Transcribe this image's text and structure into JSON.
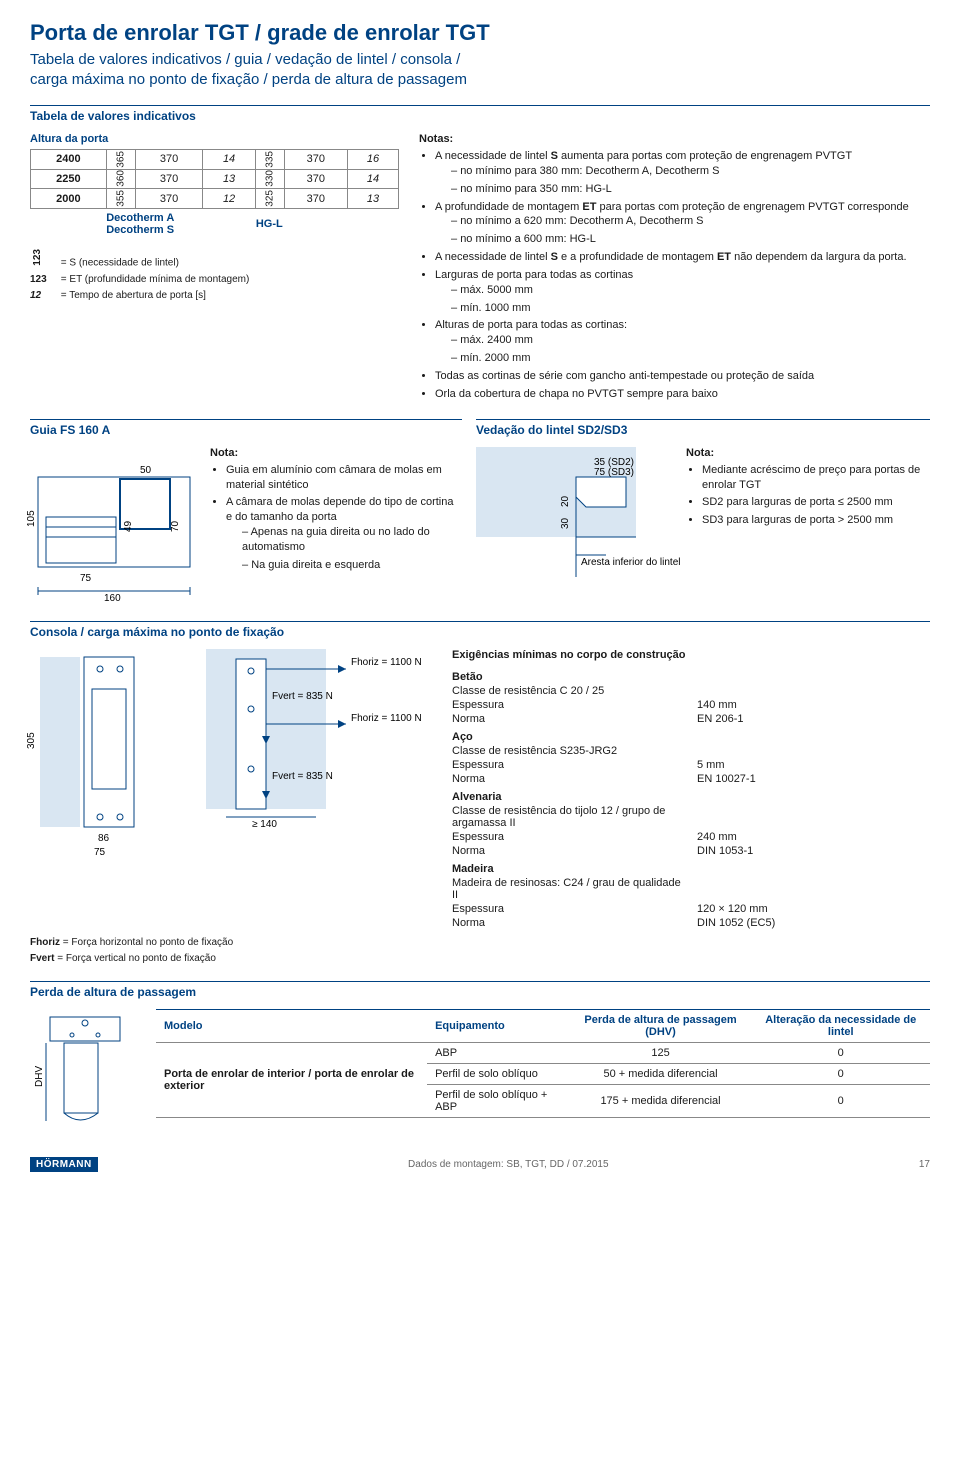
{
  "colors": {
    "brand": "#004282",
    "line": "#888888",
    "fill": "#d9e6f2",
    "text": "#1a1a1a"
  },
  "title": {
    "main": "Porta de enrolar TGT / grade de enrolar TGT",
    "sub": "Tabela de valores indicativos / guia / vedação de lintel / consola /\ncarga máxima no ponto de fixação / perda de altura de passagem"
  },
  "tabela_indicativos": {
    "heading": "Tabela de valores indicativos",
    "altura_label": "Altura da porta",
    "rows": [
      {
        "h": "2400",
        "c1": "365",
        "c2": "370",
        "c3": "14",
        "c4": "335",
        "c5": "370",
        "c6": "16"
      },
      {
        "h": "2250",
        "c1": "360",
        "c2": "370",
        "c3": "13",
        "c4": "330",
        "c5": "370",
        "c6": "14"
      },
      {
        "h": "2000",
        "c1": "355",
        "c2": "370",
        "c3": "12",
        "c4": "325",
        "c5": "370",
        "c6": "13"
      }
    ],
    "footer": {
      "left": "Decotherm A\nDecotherm S",
      "right": "HG-L"
    },
    "legend": [
      {
        "key": "123",
        "style": "rotated-bold",
        "txt": "= S (necessidade de lintel)"
      },
      {
        "key": "123",
        "style": "bold",
        "txt": "= ET (profundidade mínima de montagem)"
      },
      {
        "key": "12",
        "style": "italic-bold",
        "txt": "= Tempo de abertura de porta [s]"
      }
    ]
  },
  "notas_top": {
    "title": "Notas:",
    "items": [
      {
        "txt": "A necessidade de lintel <b>S</b> aumenta para portas com proteção de engrenagem PVTGT",
        "sub": [
          "no mínimo para 380 mm: Decotherm A, Decotherm S",
          "no mínimo para 350 mm: HG-L"
        ]
      },
      {
        "txt": "A profundidade de montagem <b>ET</b> para portas com proteção de engrenagem PVTGT corresponde",
        "sub": [
          "no mínimo a 620 mm: Decotherm A, Decotherm S",
          "no mínimo a 600 mm: HG-L"
        ]
      },
      {
        "txt": "A necessidade de lintel <b>S</b> e a profundidade de montagem <b>ET</b> não dependem da largura da porta."
      },
      {
        "txt": "Larguras de porta para todas as cortinas",
        "sub": [
          "máx. 5000 mm",
          "mín. 1000 mm"
        ]
      },
      {
        "txt": "Alturas de porta para todas as cortinas:",
        "sub": [
          "máx. 2400 mm",
          "mín. 2000 mm"
        ]
      },
      {
        "txt": "Todas as cortinas de série com gancho anti-tempestade ou proteção de saída"
      },
      {
        "txt": "Orla da cobertura de chapa no PVTGT sempre para baixo"
      }
    ]
  },
  "guia": {
    "heading": "Guia FS 160 A",
    "dims": {
      "w160": "160",
      "w75": "75",
      "w50": "50",
      "h105": "105",
      "h70": "70",
      "h49": "49"
    },
    "nota_title": "Nota:",
    "nota": [
      {
        "txt": "Guia em alumínio com câmara de molas em material sintético"
      },
      {
        "txt": "A câmara de molas depende do tipo de cortina e do tamanho da porta",
        "sub": [
          "Apenas na guia direita ou no lado do automatismo",
          "Na guia direita e esquerda"
        ]
      }
    ]
  },
  "vedacao": {
    "heading": "Vedação do lintel SD2/SD3",
    "dims": {
      "d35": "35 (SD2)",
      "d75": "75 (SD3)",
      "d20": "20",
      "d30": "30"
    },
    "aresta": "Aresta inferior do lintel",
    "nota_title": "Nota:",
    "nota": [
      {
        "txt": "Mediante acréscimo de preço para portas de enrolar TGT"
      },
      {
        "txt": "SD2 para larguras de porta ≤ 2500 mm"
      },
      {
        "txt": "SD3 para larguras de porta > 2500 mm"
      }
    ]
  },
  "consola": {
    "heading": "Consola / carga máxima no ponto de fixação",
    "dims": {
      "h305": "305",
      "w86": "86",
      "w75": "75",
      "ge140": "≥ 140"
    },
    "forces": {
      "fh": "Fhoriz = 1100 N",
      "fv": "Fvert = 835 N"
    },
    "legend": [
      {
        "k": "Fhoriz",
        "v": "= Força horizontal no ponto de fixação"
      },
      {
        "k": "Fvert",
        "v": "= Força vertical no ponto de fixação"
      }
    ],
    "exig_title": "Exigências mínimas no corpo de construção",
    "specs": [
      {
        "hdr": "Betão",
        "rows": [
          [
            "Classe de resistência C 20 / 25",
            ""
          ],
          [
            "Espessura",
            "140 mm"
          ],
          [
            "Norma",
            "EN 206-1"
          ]
        ]
      },
      {
        "hdr": "Aço",
        "rows": [
          [
            "Classe de resistência S235-JRG2",
            ""
          ],
          [
            "Espessura",
            "5 mm"
          ],
          [
            "Norma",
            "EN 10027-1"
          ]
        ]
      },
      {
        "hdr": "Alvenaria",
        "rows": [
          [
            "Classe de resistência do tijolo 12 / grupo de argamassa II",
            ""
          ],
          [
            "Espessura",
            "240 mm"
          ],
          [
            "Norma",
            "DIN 1053-1"
          ]
        ]
      },
      {
        "hdr": "Madeira",
        "rows": [
          [
            "Madeira de resinosas: C24 / grau de qualidade II",
            ""
          ],
          [
            "Espessura",
            "120 × 120 mm"
          ],
          [
            "Norma",
            "DIN 1052 (EC5)"
          ]
        ]
      }
    ]
  },
  "perda": {
    "heading": "Perda de altura de passagem",
    "dhv": "DHV",
    "headers": [
      "Modelo",
      "Equipamento",
      "Perda de altura de passagem (DHV)",
      "Alteração da necessidade de lintel"
    ],
    "model": "Porta de enrolar de interior / porta de enrolar de exterior",
    "rows": [
      [
        "ABP",
        "125",
        "0"
      ],
      [
        "Perfil de solo oblíquo",
        "50 + medida diferencial",
        "0"
      ],
      [
        "Perfil de solo oblíquo + ABP",
        "175 + medida diferencial",
        "0"
      ]
    ]
  },
  "footer": {
    "brand": "HÖRMANN",
    "ref": "Dados de montagem: SB, TGT, DD / 07.2015",
    "page": "17"
  }
}
